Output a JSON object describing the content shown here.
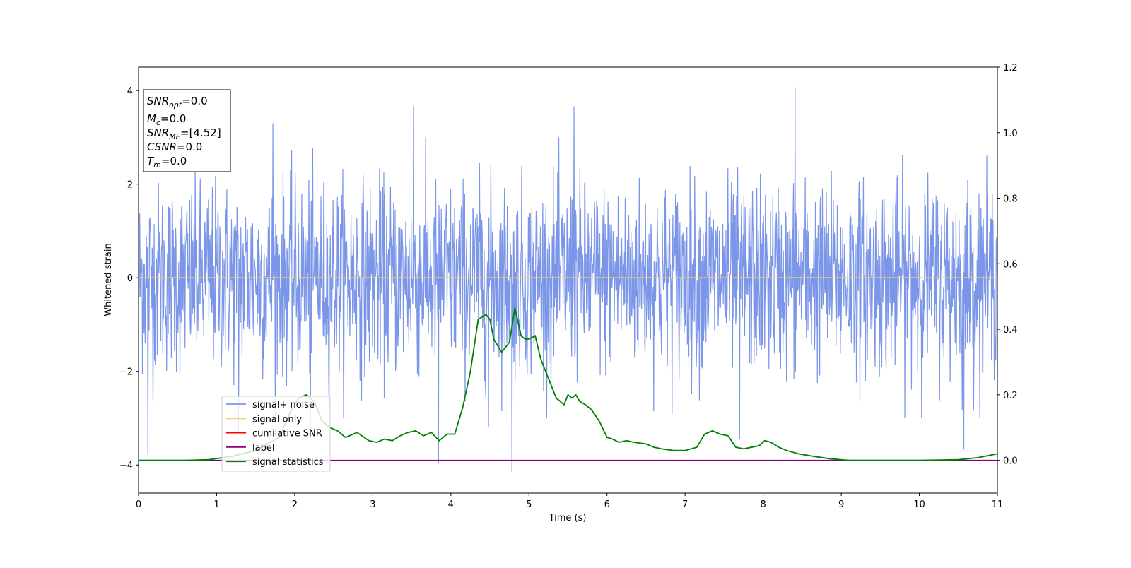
{
  "chart_data": {
    "type": "line",
    "xlabel": "Time (s)",
    "ylabel": "Whitened strain",
    "xlim": [
      0,
      11
    ],
    "ylim": [
      -4.6,
      4.5
    ],
    "y2lim": [
      -0.1,
      1.2
    ],
    "xticks": [
      0,
      1,
      2,
      3,
      4,
      5,
      6,
      7,
      8,
      9,
      10,
      11
    ],
    "yticks": [
      -4,
      -2,
      0,
      2,
      4
    ],
    "y2ticks": [
      "0.0",
      "0.2",
      "0.4",
      "0.6",
      "0.8",
      "1.0",
      "1.2"
    ],
    "grid": false,
    "legend_position": "lower-left",
    "annotation_box": {
      "lines": [
        {
          "base": "SNR",
          "sub": "opt",
          "value": "=0.0"
        },
        {
          "base": "M",
          "sub": "c",
          "value": "=0.0"
        },
        {
          "base": "SNR",
          "sub": "MF",
          "value": "=[4.52]"
        },
        {
          "base": "CSNR",
          "sub": "",
          "value": "=0.0"
        },
        {
          "base": "T",
          "sub": "m",
          "value": "=0.0"
        }
      ]
    },
    "series": [
      {
        "name": "signal+ noise",
        "color": "#7b96e8",
        "axis": "left",
        "kind": "noise",
        "stats": {
          "typical_amplitude": [
            -1.7,
            1.7
          ],
          "max": 4.07,
          "min": -4.15,
          "n_points": 2200
        },
        "spikes": [
          {
            "x": 0.12,
            "y": -3.75
          },
          {
            "x": 1.72,
            "y": 3.3
          },
          {
            "x": 3.52,
            "y": 3.67
          },
          {
            "x": 3.84,
            "y": -3.95
          },
          {
            "x": 4.78,
            "y": -4.15
          },
          {
            "x": 5.58,
            "y": 3.66
          },
          {
            "x": 8.41,
            "y": 4.07
          },
          {
            "x": 10.57,
            "y": -3.67
          },
          {
            "x": 2.2,
            "y": -3.2
          },
          {
            "x": 7.7,
            "y": -3.45
          },
          {
            "x": 4.48,
            "y": -3.2
          },
          {
            "x": 1.28,
            "y": -3.35
          }
        ]
      },
      {
        "name": "signal only",
        "color": "#ffc875",
        "axis": "left",
        "x": [
          0,
          11
        ],
        "y": [
          0,
          0
        ]
      },
      {
        "name": "cumilative SNR",
        "color": "#ff0000",
        "axis": "left",
        "x": [],
        "y": []
      },
      {
        "name": "label",
        "color": "#800080",
        "axis": "right",
        "x": [
          0,
          11
        ],
        "y": [
          0.0,
          0.0
        ]
      },
      {
        "name": "signal statistics",
        "color": "#008000",
        "axis": "right",
        "x": [
          0,
          0.3,
          0.6,
          0.9,
          1.2,
          1.5,
          1.8,
          1.95,
          2.05,
          2.15,
          2.25,
          2.35,
          2.45,
          2.55,
          2.65,
          2.8,
          2.95,
          3.05,
          3.15,
          3.25,
          3.35,
          3.45,
          3.55,
          3.65,
          3.75,
          3.85,
          3.95,
          4.05,
          4.15,
          4.25,
          4.35,
          4.45,
          4.5,
          4.55,
          4.65,
          4.75,
          4.82,
          4.9,
          4.95,
          5.0,
          5.08,
          5.15,
          5.25,
          5.35,
          5.45,
          5.5,
          5.55,
          5.6,
          5.65,
          5.72,
          5.8,
          5.9,
          6.0,
          6.07,
          6.15,
          6.25,
          6.35,
          6.5,
          6.6,
          6.7,
          6.85,
          7.0,
          7.15,
          7.25,
          7.35,
          7.45,
          7.55,
          7.65,
          7.75,
          7.85,
          7.95,
          8.02,
          8.1,
          8.2,
          8.3,
          8.45,
          8.65,
          8.85,
          9.1,
          9.5,
          10.0,
          10.5,
          10.75,
          11.0
        ],
        "y": [
          0.0,
          0.0,
          0.0,
          0.002,
          0.012,
          0.03,
          0.07,
          0.15,
          0.19,
          0.2,
          0.18,
          0.12,
          0.1,
          0.09,
          0.07,
          0.085,
          0.06,
          0.055,
          0.065,
          0.06,
          0.075,
          0.085,
          0.09,
          0.075,
          0.085,
          0.06,
          0.08,
          0.08,
          0.16,
          0.27,
          0.43,
          0.445,
          0.43,
          0.37,
          0.33,
          0.36,
          0.465,
          0.38,
          0.37,
          0.37,
          0.38,
          0.31,
          0.25,
          0.19,
          0.17,
          0.2,
          0.19,
          0.2,
          0.18,
          0.17,
          0.155,
          0.12,
          0.07,
          0.065,
          0.055,
          0.06,
          0.055,
          0.05,
          0.04,
          0.035,
          0.03,
          0.03,
          0.04,
          0.08,
          0.09,
          0.08,
          0.075,
          0.04,
          0.035,
          0.04,
          0.045,
          0.06,
          0.055,
          0.04,
          0.03,
          0.02,
          0.012,
          0.005,
          0.0,
          0.0,
          0.0,
          0.002,
          0.008,
          0.02
        ]
      }
    ]
  }
}
